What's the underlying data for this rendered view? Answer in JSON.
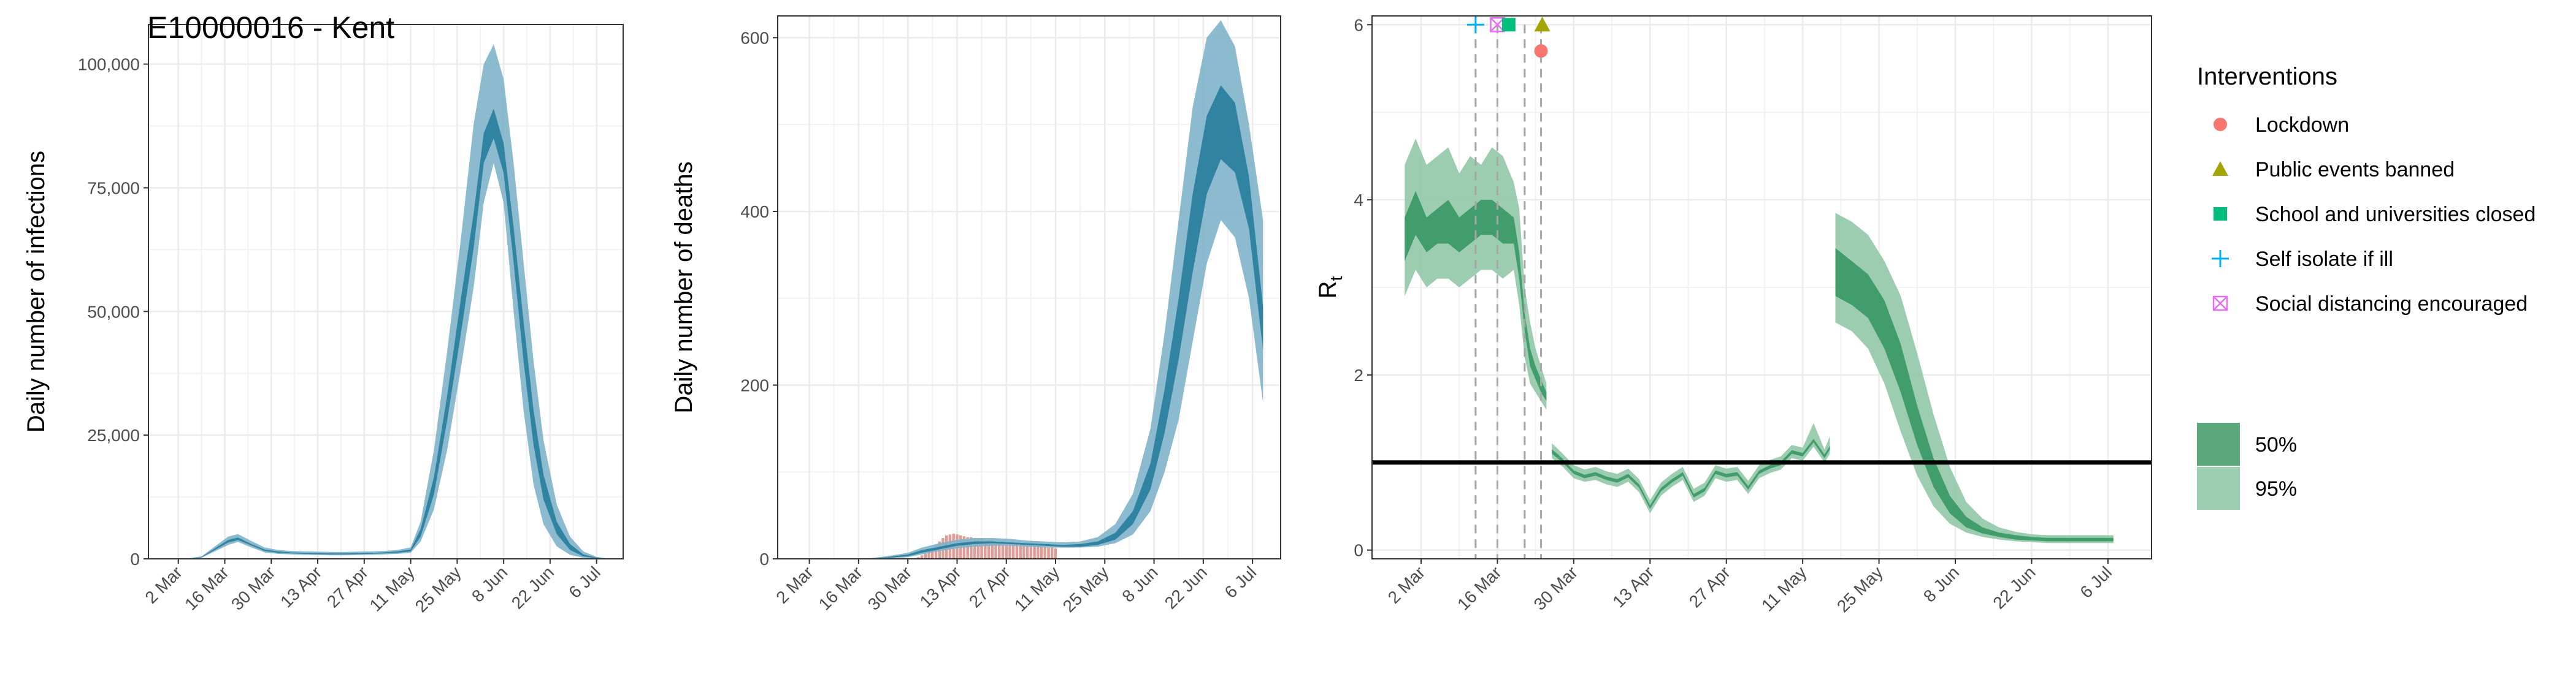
{
  "colors": {
    "infection": "#2c7f9f",
    "infection_50": "#2c7f9f",
    "infection_95": "#7fb3c9",
    "rt_50": "#3d9a68",
    "rt_95": "#92c8a9",
    "observed_deaths": "#d98c86",
    "lockdown": "#f8766d",
    "public_events": "#a3a500",
    "school": "#00bf7d",
    "self_isolate": "#00b0f6",
    "social_distancing": "#e76bf3"
  },
  "chart_data": [
    {
      "id": "infections",
      "type": "area",
      "title": "E10000016 - Kent",
      "xlabel": "",
      "ylabel": "Daily number of infections",
      "x_start": "2020-02-22",
      "xlim": [
        "2020-02-22",
        "2020-07-14"
      ],
      "ylim": [
        0,
        108000
      ],
      "yticks": [
        0,
        25000,
        50000,
        75000,
        100000
      ],
      "ytick_labels": [
        "0",
        "25,000",
        "50,000",
        "75,000",
        "100,000"
      ],
      "xticks": [
        "2020-03-02",
        "2020-03-16",
        "2020-03-30",
        "2020-04-13",
        "2020-04-27",
        "2020-05-11",
        "2020-05-25",
        "2020-06-08",
        "2020-06-22",
        "2020-07-06"
      ],
      "xtick_labels": [
        "2 Mar",
        "16 Mar",
        "30 Mar",
        "13 Apr",
        "27 Apr",
        "11 May",
        "25 May",
        "8 Jun",
        "22 Jun",
        "6 Jul"
      ],
      "grid": true,
      "bands": {
        "x": [
          "2020-02-26",
          "2020-03-01",
          "2020-03-05",
          "2020-03-09",
          "2020-03-13",
          "2020-03-17",
          "2020-03-20",
          "2020-03-24",
          "2020-03-28",
          "2020-04-01",
          "2020-04-05",
          "2020-04-09",
          "2020-04-13",
          "2020-04-17",
          "2020-04-21",
          "2020-04-25",
          "2020-04-29",
          "2020-05-03",
          "2020-05-07",
          "2020-05-11",
          "2020-05-14",
          "2020-05-18",
          "2020-05-22",
          "2020-05-26",
          "2020-05-30",
          "2020-06-02",
          "2020-06-05",
          "2020-06-08",
          "2020-06-11",
          "2020-06-14",
          "2020-06-17",
          "2020-06-20",
          "2020-06-24",
          "2020-06-28",
          "2020-07-02",
          "2020-07-06",
          "2020-07-09"
        ],
        "lower95": [
          0,
          0,
          0,
          200,
          1500,
          2800,
          3400,
          2300,
          1300,
          1000,
          900,
          800,
          750,
          700,
          700,
          750,
          800,
          900,
          1000,
          1200,
          3500,
          10000,
          22000,
          38000,
          55000,
          72000,
          80000,
          72000,
          50000,
          30000,
          15000,
          7000,
          2500,
          800,
          200,
          50,
          0
        ],
        "lower50": [
          0,
          0,
          0,
          300,
          1800,
          3300,
          3800,
          2700,
          1600,
          1200,
          1100,
          1000,
          950,
          900,
          900,
          950,
          1000,
          1100,
          1200,
          1500,
          4500,
          13000,
          28000,
          45000,
          63000,
          80000,
          85000,
          78000,
          60000,
          40000,
          23000,
          12000,
          5000,
          1800,
          500,
          120,
          0
        ],
        "upper50": [
          0,
          0,
          50,
          400,
          2100,
          3800,
          4300,
          3000,
          1900,
          1500,
          1300,
          1200,
          1150,
          1100,
          1100,
          1150,
          1200,
          1300,
          1500,
          1900,
          6000,
          16500,
          33000,
          52000,
          70000,
          86000,
          91000,
          84000,
          67000,
          48000,
          30000,
          17000,
          7500,
          3000,
          900,
          250,
          50
        ],
        "upper95": [
          0,
          0,
          100,
          500,
          2500,
          4500,
          5000,
          3600,
          2300,
          1800,
          1600,
          1500,
          1450,
          1400,
          1400,
          1450,
          1500,
          1600,
          1800,
          2300,
          7500,
          22000,
          42000,
          64000,
          88000,
          100000,
          104000,
          97000,
          80000,
          60000,
          40000,
          24000,
          11000,
          4500,
          1500,
          400,
          100
        ]
      }
    },
    {
      "id": "deaths",
      "type": "area",
      "title": "",
      "xlabel": "",
      "ylabel": "Daily number of deaths",
      "x_start": "2020-02-22",
      "xlim": [
        "2020-02-22",
        "2020-07-14"
      ],
      "ylim": [
        0,
        625
      ],
      "yticks": [
        0,
        200,
        400,
        600
      ],
      "ytick_labels": [
        "0",
        "200",
        "400",
        "600"
      ],
      "xticks": [
        "2020-03-02",
        "2020-03-16",
        "2020-03-30",
        "2020-04-13",
        "2020-04-27",
        "2020-05-11",
        "2020-05-25",
        "2020-06-08",
        "2020-06-22",
        "2020-07-06"
      ],
      "xtick_labels": [
        "2 Mar",
        "16 Mar",
        "30 Mar",
        "13 Apr",
        "27 Apr",
        "11 May",
        "25 May",
        "8 Jun",
        "22 Jun",
        "6 Jul"
      ],
      "grid": true,
      "bars": {
        "x_first": "2020-04-02",
        "values": [
          2,
          4,
          6,
          9,
          12,
          16,
          20,
          24,
          27,
          28,
          29,
          28,
          27,
          26,
          25,
          25,
          24,
          23,
          23,
          22,
          22,
          21,
          20,
          20,
          19,
          19,
          18,
          18,
          18,
          17,
          17,
          16,
          16,
          15,
          15,
          14,
          14,
          13,
          13,
          12
        ]
      },
      "bands": {
        "x": [
          "2020-03-12",
          "2020-03-18",
          "2020-03-24",
          "2020-03-30",
          "2020-04-03",
          "2020-04-08",
          "2020-04-13",
          "2020-04-18",
          "2020-04-23",
          "2020-04-28",
          "2020-05-03",
          "2020-05-08",
          "2020-05-13",
          "2020-05-18",
          "2020-05-23",
          "2020-05-28",
          "2020-06-02",
          "2020-06-07",
          "2020-06-11",
          "2020-06-15",
          "2020-06-19",
          "2020-06-23",
          "2020-06-27",
          "2020-07-01",
          "2020-07-05",
          "2020-07-09"
        ],
        "lower95": [
          0,
          0,
          0,
          2,
          5,
          9,
          12,
          14,
          15,
          15,
          14,
          13,
          13,
          13,
          14,
          18,
          28,
          55,
          100,
          160,
          250,
          340,
          390,
          370,
          300,
          180
        ],
        "lower50": [
          0,
          0,
          1,
          3,
          7,
          11,
          15,
          17,
          18,
          17,
          16,
          15,
          14,
          14,
          16,
          22,
          40,
          80,
          145,
          230,
          330,
          420,
          460,
          445,
          380,
          240
        ],
        "upper50": [
          0,
          0,
          2,
          5,
          10,
          14,
          18,
          20,
          20,
          19,
          18,
          17,
          16,
          17,
          20,
          30,
          55,
          110,
          195,
          300,
          420,
          510,
          545,
          525,
          440,
          290
        ],
        "upper95": [
          0,
          0,
          3,
          7,
          13,
          18,
          22,
          24,
          24,
          23,
          21,
          20,
          19,
          20,
          25,
          40,
          75,
          150,
          260,
          390,
          520,
          600,
          620,
          590,
          500,
          390
        ]
      }
    },
    {
      "id": "rt",
      "type": "area",
      "title": "",
      "xlabel": "",
      "ylabel": "R",
      "ylabel_sub": "t",
      "x_start": "2020-02-22",
      "xlim": [
        "2020-02-22",
        "2020-07-14"
      ],
      "ylim": [
        -0.1,
        6.1
      ],
      "yticks": [
        0,
        2,
        4,
        6
      ],
      "ytick_labels": [
        "0",
        "2",
        "4",
        "6"
      ],
      "xticks": [
        "2020-03-02",
        "2020-03-16",
        "2020-03-30",
        "2020-04-13",
        "2020-04-27",
        "2020-05-11",
        "2020-05-25",
        "2020-06-08",
        "2020-06-22",
        "2020-07-06"
      ],
      "xtick_labels": [
        "2 Mar",
        "16 Mar",
        "30 Mar",
        "13 Apr",
        "27 Apr",
        "11 May",
        "25 May",
        "8 Jun",
        "22 Jun",
        "6 Jul"
      ],
      "grid": true,
      "hline": 1,
      "segments": [
        {
          "x": [
            "2020-02-28",
            "2020-03-01",
            "2020-03-03",
            "2020-03-05",
            "2020-03-07",
            "2020-03-09",
            "2020-03-11",
            "2020-03-13",
            "2020-03-15",
            "2020-03-17",
            "2020-03-19",
            "2020-03-20",
            "2020-03-21",
            "2020-03-22",
            "2020-03-23",
            "2020-03-24",
            "2020-03-25"
          ],
          "lower95": [
            2.9,
            3.2,
            3.0,
            3.1,
            3.1,
            3.0,
            3.1,
            3.2,
            3.2,
            3.1,
            3.2,
            2.8,
            2.2,
            1.9,
            1.8,
            1.7,
            1.6
          ],
          "lower50": [
            3.3,
            3.6,
            3.4,
            3.5,
            3.5,
            3.4,
            3.5,
            3.6,
            3.6,
            3.5,
            3.5,
            3.1,
            2.5,
            2.1,
            1.95,
            1.8,
            1.7
          ],
          "upper50": [
            3.8,
            4.1,
            3.8,
            3.9,
            4.0,
            3.8,
            3.9,
            4.0,
            4.0,
            3.9,
            3.8,
            3.4,
            2.7,
            2.3,
            2.1,
            1.95,
            1.8
          ],
          "upper95": [
            4.4,
            4.7,
            4.4,
            4.5,
            4.6,
            4.3,
            4.5,
            4.4,
            4.6,
            4.5,
            4.2,
            3.9,
            3.0,
            2.6,
            2.3,
            2.1,
            1.9
          ]
        },
        {
          "x": [
            "2020-03-26",
            "2020-03-27",
            "2020-03-28",
            "2020-03-30",
            "2020-04-01",
            "2020-04-03",
            "2020-04-05",
            "2020-04-07",
            "2020-04-09",
            "2020-04-11",
            "2020-04-13",
            "2020-04-15",
            "2020-04-17",
            "2020-04-19",
            "2020-04-21",
            "2020-04-23",
            "2020-04-25",
            "2020-04-27",
            "2020-04-29",
            "2020-05-01",
            "2020-05-03",
            "2020-05-05",
            "2020-05-07",
            "2020-05-09",
            "2020-05-11",
            "2020-05-13",
            "2020-05-15",
            "2020-05-16"
          ],
          "lower95": [
            1.05,
            1.0,
            0.95,
            0.82,
            0.78,
            0.8,
            0.75,
            0.72,
            0.78,
            0.66,
            0.42,
            0.62,
            0.72,
            0.8,
            0.55,
            0.62,
            0.82,
            0.78,
            0.8,
            0.64,
            0.82,
            0.88,
            0.92,
            1.05,
            1.02,
            1.18,
            1.0,
            1.1
          ],
          "lower50": [
            1.1,
            1.05,
            1.0,
            0.87,
            0.82,
            0.85,
            0.8,
            0.77,
            0.83,
            0.71,
            0.47,
            0.67,
            0.77,
            0.85,
            0.6,
            0.67,
            0.87,
            0.83,
            0.85,
            0.69,
            0.87,
            0.93,
            0.97,
            1.1,
            1.07,
            1.23,
            1.05,
            1.15
          ],
          "upper50": [
            1.15,
            1.1,
            1.04,
            0.91,
            0.86,
            0.89,
            0.84,
            0.81,
            0.87,
            0.75,
            0.51,
            0.71,
            0.81,
            0.89,
            0.64,
            0.71,
            0.91,
            0.87,
            0.89,
            0.73,
            0.91,
            0.97,
            1.01,
            1.14,
            1.11,
            1.27,
            1.09,
            1.19
          ],
          "upper95": [
            1.22,
            1.16,
            1.1,
            0.97,
            0.92,
            0.95,
            0.9,
            0.87,
            0.93,
            0.81,
            0.57,
            0.77,
            0.87,
            0.95,
            0.7,
            0.77,
            0.97,
            0.93,
            0.95,
            0.79,
            0.97,
            1.03,
            1.07,
            1.2,
            1.17,
            1.45,
            1.15,
            1.3
          ]
        },
        {
          "x": [
            "2020-05-17",
            "2020-05-20",
            "2020-05-23",
            "2020-05-26",
            "2020-05-29",
            "2020-06-01",
            "2020-06-04",
            "2020-06-07",
            "2020-06-10",
            "2020-06-13",
            "2020-06-16",
            "2020-06-19",
            "2020-06-22",
            "2020-06-25",
            "2020-06-28",
            "2020-07-01",
            "2020-07-04",
            "2020-07-07"
          ],
          "lower95": [
            2.6,
            2.5,
            2.3,
            1.9,
            1.35,
            0.85,
            0.5,
            0.3,
            0.2,
            0.15,
            0.12,
            0.1,
            0.09,
            0.08,
            0.08,
            0.08,
            0.08,
            0.08
          ],
          "lower50": [
            2.9,
            2.8,
            2.65,
            2.3,
            1.8,
            1.2,
            0.72,
            0.42,
            0.26,
            0.19,
            0.15,
            0.12,
            0.11,
            0.1,
            0.1,
            0.1,
            0.1,
            0.1
          ],
          "upper50": [
            3.45,
            3.3,
            3.15,
            2.85,
            2.35,
            1.65,
            1.05,
            0.62,
            0.38,
            0.26,
            0.2,
            0.17,
            0.15,
            0.14,
            0.14,
            0.14,
            0.14,
            0.14
          ],
          "upper95": [
            3.85,
            3.75,
            3.6,
            3.3,
            2.9,
            2.25,
            1.55,
            0.95,
            0.55,
            0.36,
            0.26,
            0.21,
            0.18,
            0.17,
            0.17,
            0.17,
            0.17,
            0.17
          ]
        }
      ],
      "interventions": [
        {
          "key": "self_isolate",
          "date": "2020-03-12",
          "y": 6.0,
          "shape": "plus",
          "color": "#00b0f6"
        },
        {
          "key": "social_distancing",
          "date": "2020-03-16",
          "y": 6.0,
          "shape": "square-cross",
          "color": "#e76bf3"
        },
        {
          "key": "school",
          "date": "2020-03-21",
          "y": 6.0,
          "shape": "square",
          "color": "#00bf7d"
        },
        {
          "key": "public_events",
          "date": "2020-03-24",
          "y": 6.0,
          "shape": "triangle",
          "color": "#a3a500"
        },
        {
          "key": "lockdown",
          "date": "2020-03-24",
          "y": 5.7,
          "shape": "circle",
          "color": "#f8766d"
        }
      ]
    }
  ],
  "legend": {
    "title": "Interventions",
    "items": [
      {
        "label": "Lockdown",
        "shape": "circle",
        "color": "#f8766d"
      },
      {
        "label": "Public events banned",
        "shape": "triangle",
        "color": "#a3a500"
      },
      {
        "label": "School and universities closed",
        "shape": "square",
        "color": "#00bf7d"
      },
      {
        "label": "Self isolate if ill",
        "shape": "plus",
        "color": "#00b0f6"
      },
      {
        "label": "Social distancing encouraged",
        "shape": "square-cross",
        "color": "#e76bf3"
      }
    ],
    "ci_items": [
      {
        "label": "50%",
        "color": "#5da77c"
      },
      {
        "label": "95%",
        "color": "#9cceb1"
      }
    ]
  }
}
